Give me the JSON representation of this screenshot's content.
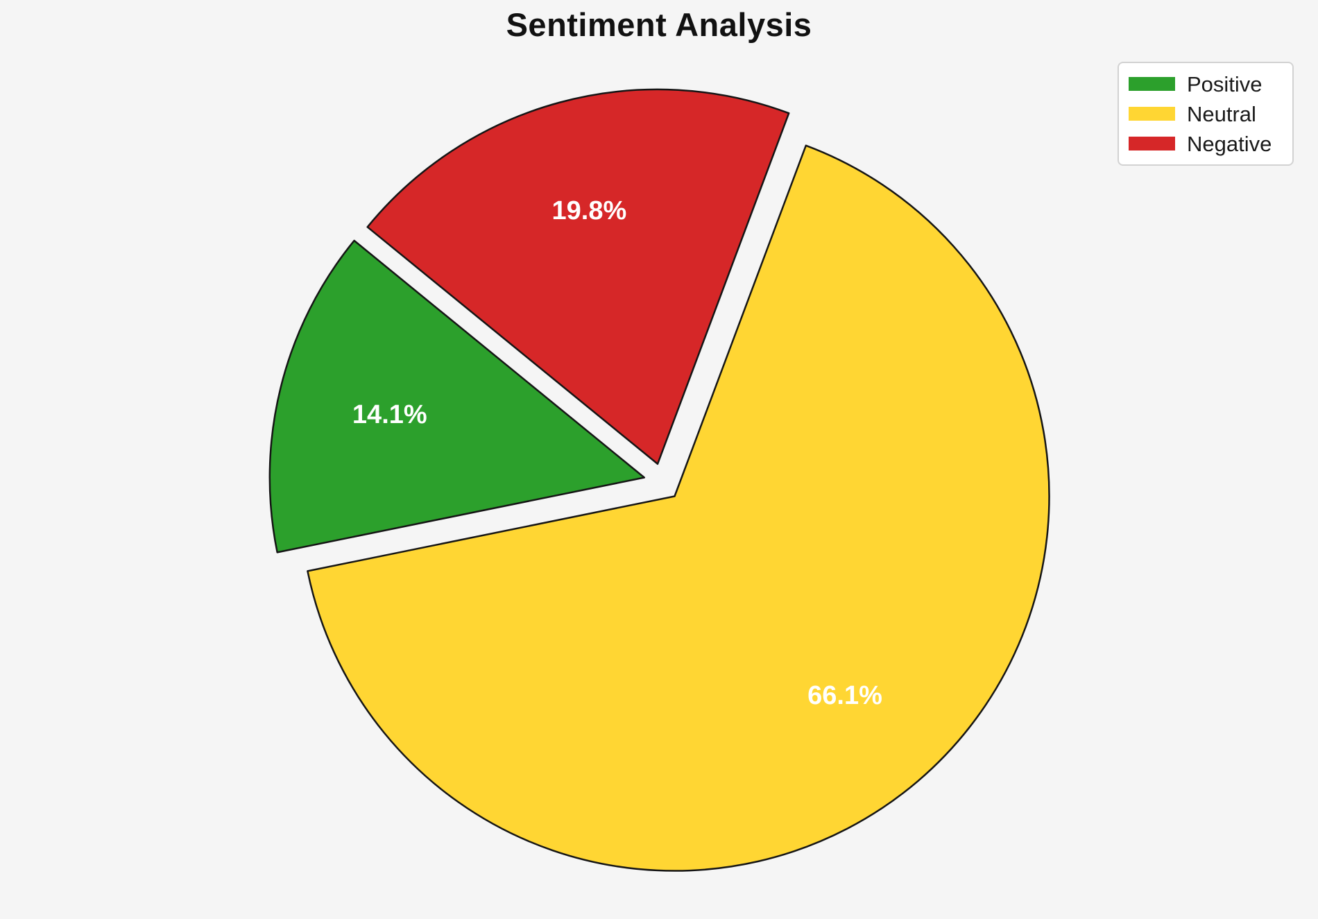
{
  "figure": {
    "background_color": "#F5F5F5"
  },
  "chart_data": {
    "type": "pie",
    "title": "Sentiment Analysis",
    "slices": [
      {
        "label": "Positive",
        "value": 14.1,
        "pct_label": "14.1%",
        "color": "#2CA02C"
      },
      {
        "label": "Neutral",
        "value": 66.1,
        "pct_label": "66.1%",
        "color": "#FFD633"
      },
      {
        "label": "Negative",
        "value": 19.8,
        "pct_label": "19.8%",
        "color": "#D62728"
      }
    ],
    "start_angle_deg": 140.76,
    "direction": "counterclockwise",
    "explode": 0.05,
    "pct_label_color": "#FFFFFF",
    "edge_color": "#151515",
    "legend": {
      "position": "upper-right",
      "entries": [
        "Positive",
        "Neutral",
        "Negative"
      ]
    }
  }
}
